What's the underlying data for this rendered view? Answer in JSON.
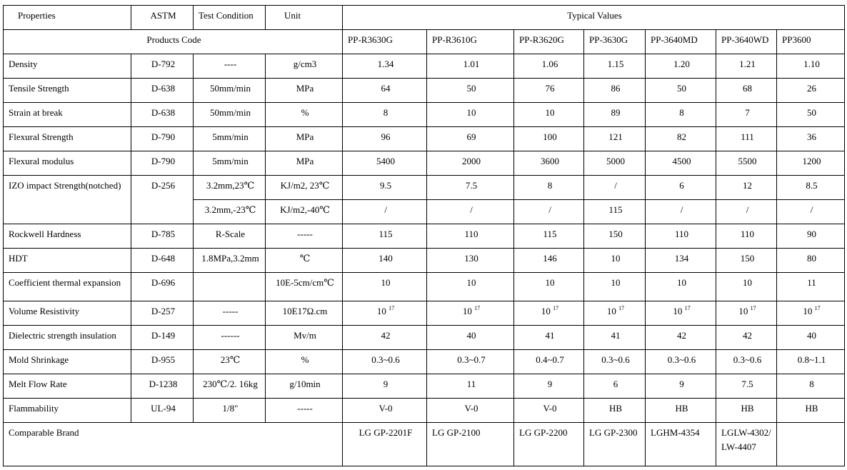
{
  "header": {
    "properties": "Properties",
    "astm": "ASTM",
    "test_condition": "Test Condition",
    "unit": "Unit",
    "typical_values": "Typical Values",
    "products_code": "Products Code"
  },
  "products": [
    "PP-R3630G",
    "PP-R3610G",
    "PP-R3620G",
    "PP-3630G",
    "PP-3640MD",
    "PP-3640WD",
    "PP3600"
  ],
  "rows": [
    {
      "property": "Density",
      "astm": "D-792",
      "condition": "----",
      "unit": "g/cm3",
      "values": [
        "1.34",
        "1.01",
        "1.06",
        "1.15",
        "1.20",
        "1.21",
        "1.10"
      ]
    },
    {
      "property": "Tensile Strength",
      "astm": "D-638",
      "condition": "50mm/min",
      "unit": "MPa",
      "values": [
        "64",
        "50",
        "76",
        "86",
        "50",
        "68",
        "26"
      ]
    },
    {
      "property": "Strain at break",
      "astm": "D-638",
      "condition": "50mm/min",
      "unit": "%",
      "values": [
        "8",
        "10",
        "10",
        "89",
        "8",
        "7",
        "50"
      ]
    },
    {
      "property": "Flexural Strength",
      "astm": "D-790",
      "condition": "5mm/min",
      "unit": "MPa",
      "values": [
        "96",
        "69",
        "100",
        "121",
        "82",
        "111",
        "36"
      ]
    },
    {
      "property": "Flexural modulus",
      "astm": "D-790",
      "condition": "5mm/min",
      "unit": "MPa",
      "values": [
        "5400",
        "2000",
        "3600",
        "5000",
        "4500",
        "5500",
        "1200"
      ]
    }
  ],
  "izod": {
    "property": "IZO impact Strength(notched)",
    "astm": "D-256",
    "sub": [
      {
        "condition": "3.2mm,23℃",
        "unit": "KJ/m2, 23℃",
        "values": [
          "9.5",
          "7.5",
          "8",
          "/",
          "6",
          "12",
          "8.5"
        ]
      },
      {
        "condition": "3.2mm,-23℃",
        "unit": "KJ/m2,-40℃",
        "values": [
          "/",
          "/",
          "/",
          "115",
          "/",
          "/",
          "/"
        ]
      }
    ]
  },
  "rows2": [
    {
      "property": "Rockwell Hardness",
      "astm": "D-785",
      "condition": "R-Scale",
      "unit": "-----",
      "values": [
        "115",
        "110",
        "115",
        "150",
        "110",
        "110",
        "90"
      ]
    },
    {
      "property": "HDT",
      "astm": "D-648",
      "condition": "1.8MPa,3.2mm",
      "unit": "℃",
      "values": [
        "140",
        "130",
        "146",
        "10",
        "134",
        "150",
        "80"
      ]
    },
    {
      "property": "Coefficient thermal expansion",
      "astm": "D-696",
      "condition": "",
      "unit": "10E-5cm/cm℃",
      "values": [
        "10",
        "10",
        "10",
        "10",
        "10",
        "10",
        "11"
      ]
    }
  ],
  "volume_resistivity": {
    "property": "Volume Resistivity",
    "astm": "D-257",
    "condition": "-----",
    "unit": "10E17Ω.cm",
    "base": "10",
    "exp": "17"
  },
  "rows3": [
    {
      "property": "Dielectric strength insulation",
      "astm": "D-149",
      "condition": "------",
      "unit": "Mv/m",
      "values": [
        "42",
        "40",
        "41",
        "41",
        "42",
        "42",
        "40"
      ]
    },
    {
      "property": "Mold Shrinkage",
      "astm": "D-955",
      "condition": "23℃",
      "unit": "%",
      "values": [
        "0.3~0.6",
        "0.3~0.7",
        "0.4~0.7",
        "0.3~0.6",
        "0.3~0.6",
        "0.3~0.6",
        "0.8~1.1"
      ]
    },
    {
      "property": "Melt Flow Rate",
      "astm": "D-1238",
      "condition": "230℃/2. 16kg",
      "unit": "g/10min",
      "values": [
        "9",
        "11",
        "9",
        "6",
        "9",
        "7.5",
        "8"
      ]
    },
    {
      "property": "Flammability",
      "astm": "UL-94",
      "condition": "1/8\"",
      "unit": "-----",
      "values": [
        "V-0",
        "V-0",
        "V-0",
        "HB",
        "HB",
        "HB",
        "HB"
      ]
    }
  ],
  "comparable_brand": {
    "label": "Comparable Brand",
    "values": [
      "LG GP-2201F",
      "LG GP-2100",
      "LG GP-2200",
      "LG GP-2300",
      "LGHM-4354",
      "LGLW-4302/LW-4407",
      ""
    ]
  }
}
